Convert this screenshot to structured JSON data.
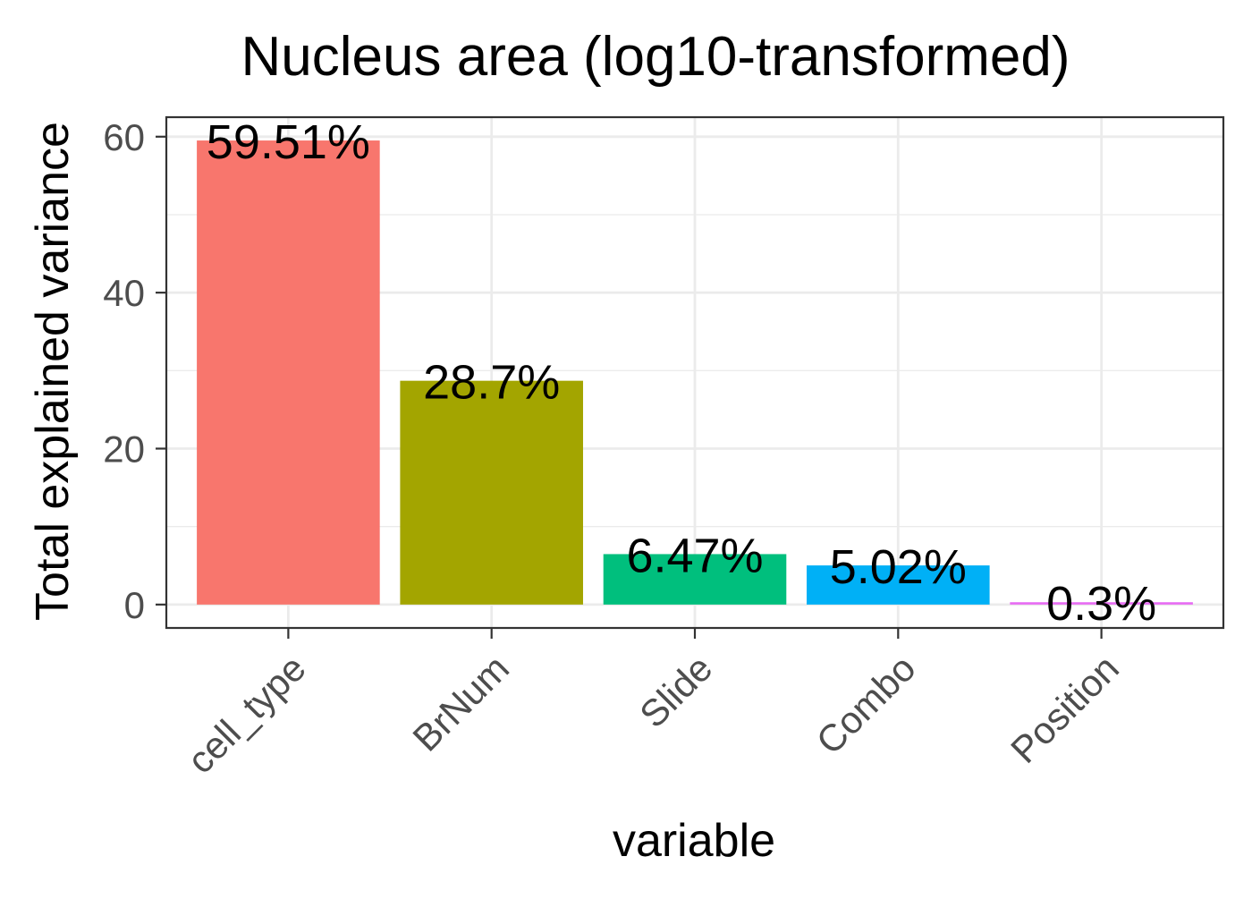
{
  "chart_data": {
    "type": "bar",
    "title": "Nucleus area (log10-transformed)",
    "xlabel": "variable",
    "ylabel": "Total explained variance",
    "categories": [
      "cell_type",
      "BrNum",
      "Slide",
      "Combo",
      "Position"
    ],
    "values": [
      59.51,
      28.7,
      6.47,
      5.02,
      0.3
    ],
    "labels": [
      "59.51%",
      "28.7%",
      "6.47%",
      "5.02%",
      "0.3%"
    ],
    "colors": [
      "#F8766D",
      "#A3A500",
      "#00BF7D",
      "#00B0F6",
      "#E76BF3"
    ],
    "ylim": [
      -3,
      62.5
    ],
    "yticks": [
      0,
      20,
      40,
      60
    ],
    "grid": true,
    "legend": "none"
  }
}
